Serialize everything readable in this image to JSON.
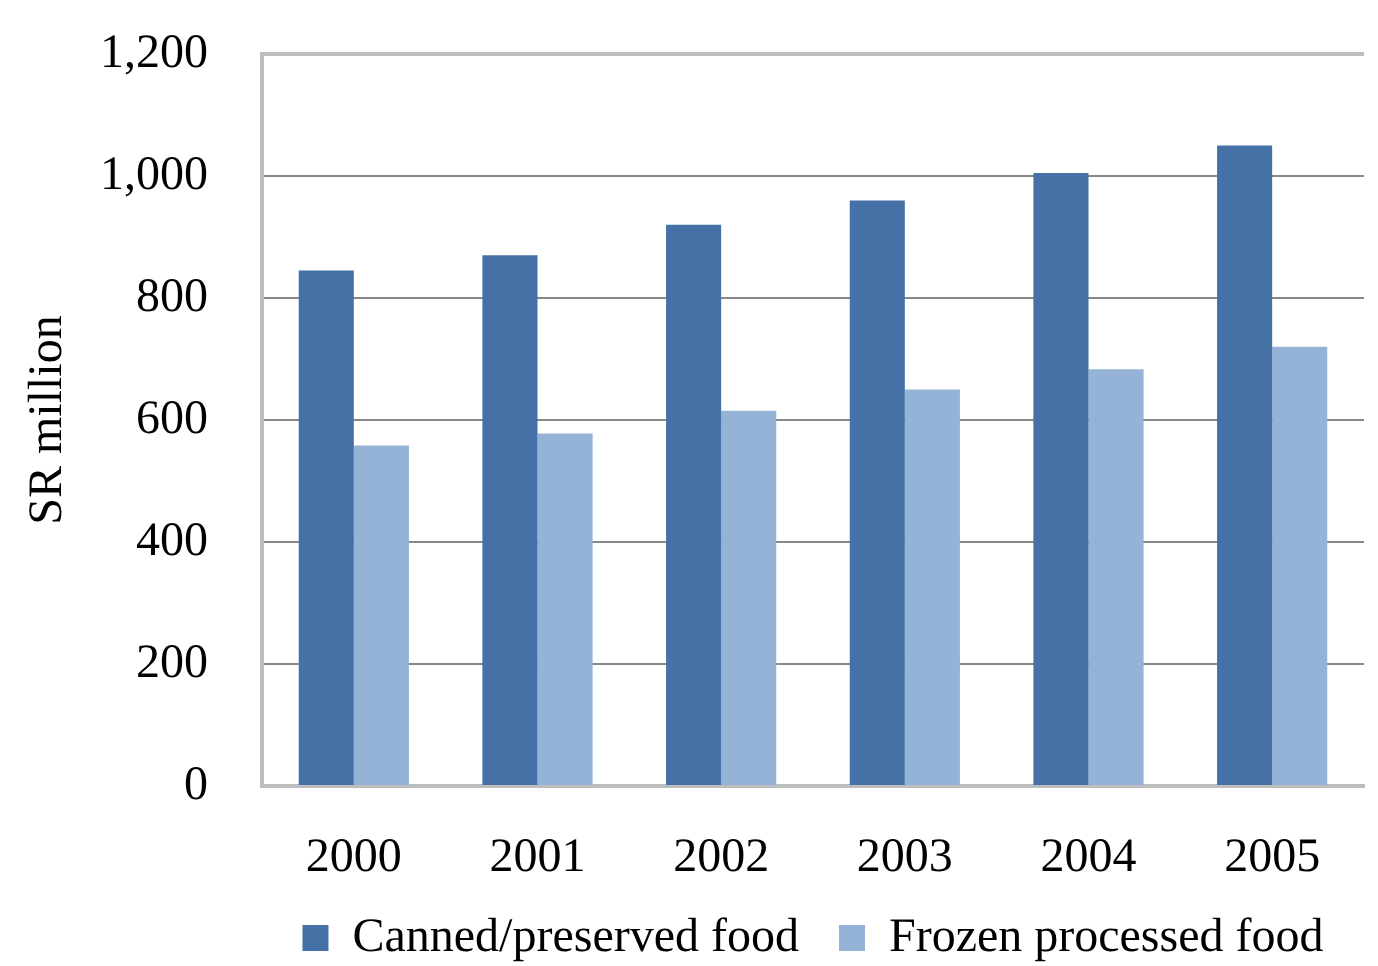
{
  "chart_data": {
    "type": "bar",
    "ylabel": "SR million",
    "categories": [
      "2000",
      "2001",
      "2002",
      "2003",
      "2004",
      "2005"
    ],
    "series": [
      {
        "name": "Canned/preserved food",
        "color": "#4571a7",
        "values": [
          845,
          870,
          920,
          960,
          1005,
          1050
        ]
      },
      {
        "name": "Frozen processed food",
        "color": "#95b3d7",
        "values": [
          558,
          578,
          615,
          650,
          683,
          720
        ]
      }
    ],
    "ylim": [
      0,
      1200
    ],
    "yticks": [
      0,
      200,
      400,
      600,
      800,
      {
        "value": 1000,
        "label": "1,000"
      },
      {
        "value": 1200,
        "label": "1,200"
      }
    ],
    "grid": "y",
    "legend": "bottom"
  }
}
